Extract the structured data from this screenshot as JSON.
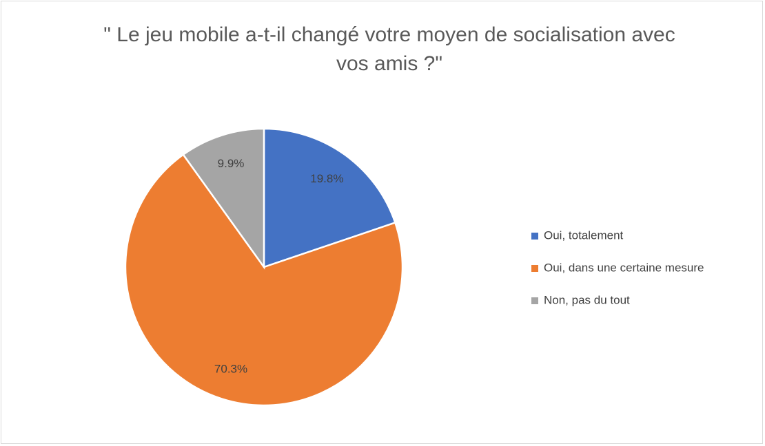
{
  "chart_data": {
    "type": "pie",
    "title": "\" Le jeu mobile a-t-il changé votre moyen de socialisation avec vos amis ?\"",
    "categories": [
      "Oui, totalement",
      "Oui, dans une certaine mesure",
      "Non, pas du tout"
    ],
    "values": [
      19.8,
      70.3,
      9.9
    ],
    "value_labels": [
      "19.8%",
      "70.3%",
      "9.9%"
    ],
    "colors": [
      "#4472c4",
      "#ed7d31",
      "#a5a5a5"
    ],
    "legend": "right"
  }
}
